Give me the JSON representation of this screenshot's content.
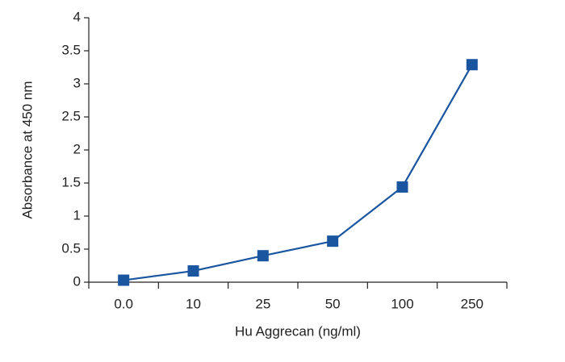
{
  "chart_data": {
    "type": "line",
    "x_label": "Hu Aggrecan (ng/ml)",
    "y_label": "Absorbance at 450 nm",
    "categories": [
      "0.0",
      "10",
      "25",
      "50",
      "100",
      "250"
    ],
    "values": [
      0.03,
      0.17,
      0.4,
      0.62,
      1.44,
      3.29
    ],
    "color": "#1a56a0",
    "ylim": [
      0,
      4
    ],
    "yticks": [
      0,
      0.5,
      1,
      1.5,
      2,
      2.5,
      3,
      3.5,
      4
    ],
    "grid": false
  }
}
